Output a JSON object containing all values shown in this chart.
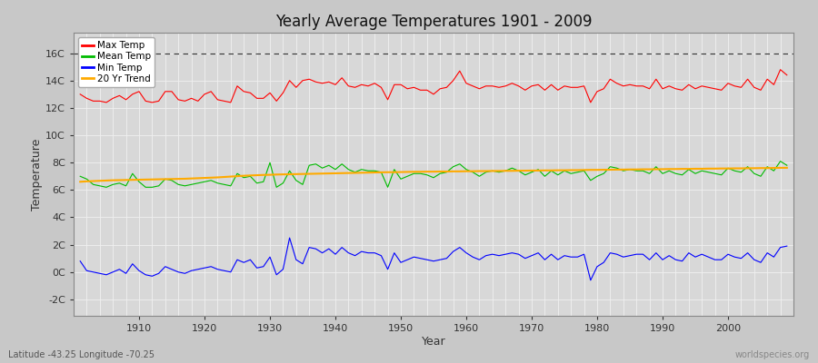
{
  "title": "Yearly Average Temperatures 1901 - 2009",
  "xlabel": "Year",
  "ylabel": "Temperature",
  "subtitle_lat_lon": "Latitude -43.25 Longitude -70.25",
  "watermark": "worldspecies.org",
  "years_start": 1901,
  "years_end": 2009,
  "ytick_labels": [
    "-2C",
    "0C",
    "2C",
    "4C",
    "6C",
    "8C",
    "10C",
    "12C",
    "14C",
    "16C"
  ],
  "ytick_values": [
    -2,
    0,
    2,
    4,
    6,
    8,
    10,
    12,
    14,
    16
  ],
  "ylim": [
    -3.2,
    17.5
  ],
  "xlim_start": 1900,
  "xlim_end": 2010,
  "background_color": "#c8c8c8",
  "plot_bg_color": "#d8d8d8",
  "grid_color": "#f0f0f0",
  "line_colors": {
    "max": "#ff0000",
    "mean": "#00bb00",
    "min": "#0000ff",
    "trend": "#ffaa00"
  },
  "legend_labels": [
    "Max Temp",
    "Mean Temp",
    "Min Temp",
    "20 Yr Trend"
  ],
  "dashed_line_y": 16,
  "max_temp": [
    13.0,
    12.7,
    12.5,
    12.5,
    12.4,
    12.7,
    12.9,
    12.6,
    13.0,
    13.2,
    12.5,
    12.4,
    12.5,
    13.2,
    13.2,
    12.6,
    12.5,
    12.7,
    12.5,
    13.0,
    13.2,
    12.6,
    12.5,
    12.4,
    13.6,
    13.2,
    13.1,
    12.7,
    12.7,
    13.1,
    12.5,
    13.1,
    14.0,
    13.5,
    14.0,
    14.1,
    13.9,
    13.8,
    13.9,
    13.7,
    14.2,
    13.6,
    13.5,
    13.7,
    13.6,
    13.8,
    13.5,
    12.6,
    13.7,
    13.7,
    13.4,
    13.5,
    13.3,
    13.3,
    13.0,
    13.4,
    13.5,
    14.0,
    14.7,
    13.8,
    13.6,
    13.4,
    13.6,
    13.6,
    13.5,
    13.6,
    13.8,
    13.6,
    13.3,
    13.6,
    13.7,
    13.3,
    13.7,
    13.3,
    13.6,
    13.5,
    13.5,
    13.6,
    12.4,
    13.2,
    13.4,
    14.1,
    13.8,
    13.6,
    13.7,
    13.6,
    13.6,
    13.4,
    14.1,
    13.4,
    13.6,
    13.4,
    13.3,
    13.7,
    13.4,
    13.6,
    13.5,
    13.4,
    13.3,
    13.8,
    13.6,
    13.5,
    14.1,
    13.5,
    13.3,
    14.1,
    13.7,
    14.8,
    14.4
  ],
  "mean_temp": [
    7.0,
    6.8,
    6.4,
    6.3,
    6.2,
    6.4,
    6.5,
    6.3,
    7.2,
    6.6,
    6.2,
    6.2,
    6.3,
    6.8,
    6.7,
    6.4,
    6.3,
    6.4,
    6.5,
    6.6,
    6.7,
    6.5,
    6.4,
    6.3,
    7.2,
    6.9,
    7.0,
    6.5,
    6.6,
    8.0,
    6.2,
    6.5,
    7.4,
    6.7,
    6.4,
    7.8,
    7.9,
    7.6,
    7.8,
    7.5,
    7.9,
    7.5,
    7.3,
    7.5,
    7.4,
    7.4,
    7.3,
    6.2,
    7.5,
    6.8,
    7.0,
    7.2,
    7.2,
    7.1,
    6.9,
    7.2,
    7.3,
    7.7,
    7.9,
    7.5,
    7.3,
    7.0,
    7.3,
    7.4,
    7.3,
    7.4,
    7.6,
    7.4,
    7.1,
    7.3,
    7.5,
    7.0,
    7.4,
    7.1,
    7.4,
    7.2,
    7.3,
    7.4,
    6.7,
    7.0,
    7.2,
    7.7,
    7.6,
    7.4,
    7.5,
    7.4,
    7.4,
    7.2,
    7.7,
    7.2,
    7.4,
    7.2,
    7.1,
    7.5,
    7.2,
    7.4,
    7.3,
    7.2,
    7.1,
    7.6,
    7.4,
    7.3,
    7.7,
    7.2,
    7.0,
    7.7,
    7.4,
    8.1,
    7.8
  ],
  "min_temp": [
    0.8,
    0.1,
    0.0,
    -0.1,
    -0.2,
    0.0,
    0.2,
    -0.1,
    0.6,
    0.1,
    -0.2,
    -0.3,
    -0.1,
    0.4,
    0.2,
    0.0,
    -0.1,
    0.1,
    0.2,
    0.3,
    0.4,
    0.2,
    0.1,
    0.0,
    0.9,
    0.7,
    0.9,
    0.3,
    0.4,
    1.1,
    -0.2,
    0.2,
    2.5,
    0.9,
    0.6,
    1.8,
    1.7,
    1.4,
    1.7,
    1.3,
    1.8,
    1.4,
    1.2,
    1.5,
    1.4,
    1.4,
    1.2,
    0.2,
    1.4,
    0.7,
    0.9,
    1.1,
    1.0,
    0.9,
    0.8,
    0.9,
    1.0,
    1.5,
    1.8,
    1.4,
    1.1,
    0.9,
    1.2,
    1.3,
    1.2,
    1.3,
    1.4,
    1.3,
    1.0,
    1.2,
    1.4,
    0.9,
    1.3,
    0.9,
    1.2,
    1.1,
    1.1,
    1.3,
    -0.6,
    0.4,
    0.7,
    1.4,
    1.3,
    1.1,
    1.2,
    1.3,
    1.3,
    0.9,
    1.4,
    0.9,
    1.2,
    0.9,
    0.8,
    1.4,
    1.1,
    1.3,
    1.1,
    0.9,
    0.9,
    1.3,
    1.1,
    1.0,
    1.4,
    0.9,
    0.7,
    1.4,
    1.1,
    1.8,
    1.9
  ],
  "trend_start_year": 1901,
  "trend_values": [
    6.6,
    6.63,
    6.65,
    6.67,
    6.69,
    6.71,
    6.72,
    6.73,
    6.74,
    6.75,
    6.76,
    6.77,
    6.78,
    6.79,
    6.8,
    6.81,
    6.82,
    6.84,
    6.86,
    6.88,
    6.9,
    6.92,
    6.95,
    6.98,
    7.01,
    7.04,
    7.06,
    7.08,
    7.1,
    7.11,
    7.13,
    7.14,
    7.15,
    7.16,
    7.17,
    7.18,
    7.19,
    7.2,
    7.21,
    7.22,
    7.23,
    7.24,
    7.25,
    7.26,
    7.27,
    7.28,
    7.29,
    7.3,
    7.3,
    7.31,
    7.32,
    7.33,
    7.33,
    7.34,
    7.34,
    7.35,
    7.35,
    7.36,
    7.36,
    7.37,
    7.37,
    7.38,
    7.38,
    7.39,
    7.39,
    7.4,
    7.4,
    7.41,
    7.41,
    7.42,
    7.42,
    7.43,
    7.43,
    7.44,
    7.44,
    7.45,
    7.45,
    7.46,
    7.47,
    7.47,
    7.48,
    7.48,
    7.49,
    7.49,
    7.5,
    7.5,
    7.51,
    7.51,
    7.52,
    7.52,
    7.53,
    7.53,
    7.54,
    7.54,
    7.55,
    7.55,
    7.56,
    7.56,
    7.57,
    7.57,
    7.58,
    7.58,
    7.59,
    7.59,
    7.6,
    7.6,
    7.61,
    7.62,
    7.62
  ]
}
